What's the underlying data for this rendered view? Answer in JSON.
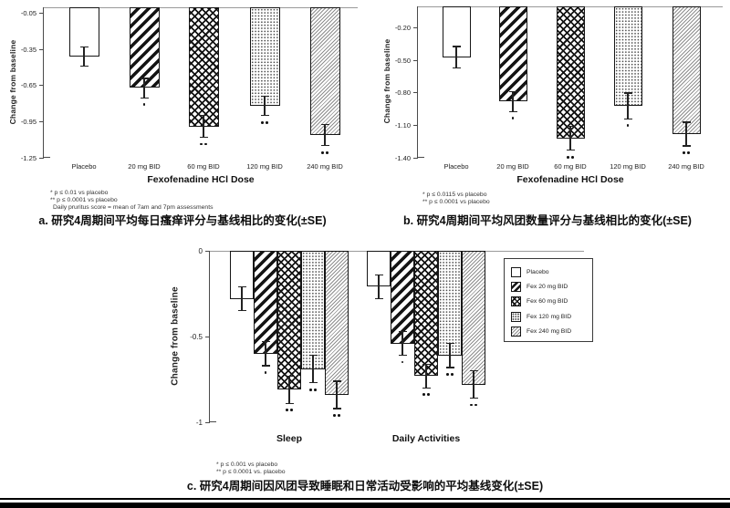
{
  "colors": {
    "ink": "#111111",
    "zero_baseline": "#9a9a9a",
    "axis": "#4a4a4a"
  },
  "chart_data": [
    {
      "id": "a",
      "type": "bar",
      "caption": "a.  研究4周期间平均每日瘙痒评分与基线相比的变化(±SE)",
      "ylabel": "Change from baseline",
      "xlabel": "Fexofenadine HCl Dose",
      "ylim": [
        0,
        -1.25
      ],
      "grid": false,
      "ytick_values": [
        -0.05,
        -0.35,
        -0.65,
        -0.95,
        -1.25
      ],
      "ytick_labels": [
        "-0.05",
        "-0.35",
        "-0.65",
        "-0.95",
        "-1.25"
      ],
      "categories": [
        "Placebo",
        "20 mg BID",
        "60 mg BID",
        "120 mg BID",
        "240 mg BID"
      ],
      "values": [
        -0.41,
        -0.67,
        -0.99,
        -0.82,
        -1.06
      ],
      "se": [
        0.08,
        0.08,
        0.09,
        0.08,
        0.09
      ],
      "significance": [
        "",
        "*",
        "**",
        "**",
        "**"
      ],
      "patterns": [
        "plain",
        "hatch",
        "crosshatch",
        "dots",
        "finehatch"
      ],
      "footnotes": [
        "* p ≤ 0.01 vs placebo",
        "** p ≤ 0.0001 vs placebo",
        "Daily pruritus score = mean of 7am and 7pm assessments"
      ]
    },
    {
      "id": "b",
      "type": "bar",
      "caption": "b.  研究4周期间平均风团数量评分与基线相比的变化(±SE)",
      "ylabel": "Change from baseline",
      "xlabel": "Fexofenadine HCl Dose",
      "ylim": [
        0,
        -1.4
      ],
      "grid": false,
      "ytick_values": [
        -0.2,
        -0.5,
        -0.8,
        -1.1,
        -1.4
      ],
      "ytick_labels": [
        "-0.20",
        "-0.50",
        "-0.80",
        "-1.10",
        "-1.40"
      ],
      "categories": [
        "Placebo",
        "20 mg BID",
        "60 mg BID",
        "120 mg BID",
        "240 mg BID"
      ],
      "values": [
        -0.47,
        -0.88,
        -1.22,
        -0.92,
        -1.18
      ],
      "se": [
        0.1,
        0.09,
        0.11,
        0.12,
        0.11
      ],
      "significance": [
        "",
        "*",
        "**",
        "*",
        "**"
      ],
      "patterns": [
        "plain",
        "hatch",
        "crosshatch",
        "dots",
        "finehatch"
      ],
      "footnotes": [
        "* p ≤ 0.0115 vs placebo",
        "** p ≤ 0.0001 vs placebo"
      ]
    },
    {
      "id": "c",
      "type": "grouped-bar",
      "caption": "c.  研究4周期间因风团导致睡眠和日常活动受影响的平均基线变化(±SE)",
      "ylabel": "Change from baseline",
      "ylim": [
        0,
        -1
      ],
      "grid": false,
      "ytick_values": [
        0,
        -0.5,
        -1
      ],
      "ytick_labels": [
        "0",
        "-0.5",
        "-1"
      ],
      "groups": [
        "Sleep",
        "Daily Activities"
      ],
      "legend_position": "upper right",
      "series": [
        {
          "name": "Placebo",
          "pattern": "plain",
          "values": [
            -0.28,
            -0.21
          ],
          "se": [
            0.07,
            0.07
          ],
          "significance": [
            "",
            ""
          ]
        },
        {
          "name": "Fex 20 mg BID",
          "pattern": "hatch",
          "values": [
            -0.6,
            -0.54
          ],
          "se": [
            0.07,
            0.07
          ],
          "significance": [
            "*",
            "*"
          ]
        },
        {
          "name": "Fex 60 mg BID",
          "pattern": "crosshatch",
          "values": [
            -0.81,
            -0.73
          ],
          "se": [
            0.08,
            0.07
          ],
          "significance": [
            "**",
            "**"
          ]
        },
        {
          "name": "Fex 120 mg BID",
          "pattern": "dots",
          "values": [
            -0.69,
            -0.61
          ],
          "se": [
            0.08,
            0.07
          ],
          "significance": [
            "**",
            "**"
          ]
        },
        {
          "name": "Fex 240 mg BID",
          "pattern": "finehatch",
          "values": [
            -0.84,
            -0.78
          ],
          "se": [
            0.08,
            0.08
          ],
          "significance": [
            "**",
            "**"
          ]
        }
      ],
      "legend": [
        "Placebo",
        "Fex 20 mg BID",
        "Fex 60 mg BID",
        "Fex 120 mg BID",
        "Fex 240 mg BID"
      ],
      "footnotes": [
        "* p ≤ 0.001 vs placebo",
        "** p ≤ 0.0001 vs. placebo"
      ]
    }
  ]
}
